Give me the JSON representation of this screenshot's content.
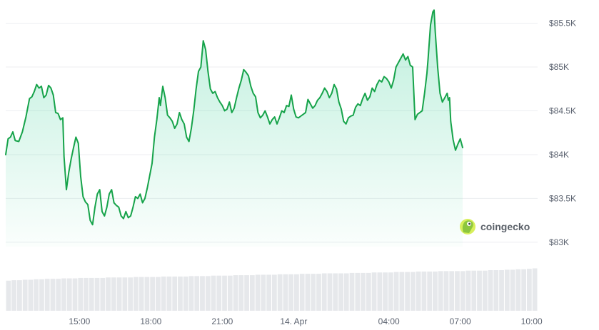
{
  "colors": {
    "line": "#16a34a",
    "area_top": "#16c784",
    "grid": "#eceef1",
    "volume": "#e6e8eb",
    "tick_text": "#5c6370"
  },
  "watermark": {
    "brand": "coingecko",
    "icon": "gecko-logo-icon"
  },
  "chart_data": {
    "type": "area",
    "title": "",
    "xlabel": "",
    "ylabel": "",
    "ylim": [
      82950,
      85700
    ],
    "y_ticks": [
      {
        "value": 83000,
        "label": "$83K"
      },
      {
        "value": 83500,
        "label": "$83.5K"
      },
      {
        "value": 84000,
        "label": "$84K"
      },
      {
        "value": 84500,
        "label": "$84.5K"
      },
      {
        "value": 85000,
        "label": "$85K"
      },
      {
        "value": 85500,
        "label": "$85.5K"
      }
    ],
    "x_range_hours": [
      11.9,
      34.25
    ],
    "x_ticks": [
      {
        "hour": 15,
        "label": "15:00"
      },
      {
        "hour": 18,
        "label": "18:00"
      },
      {
        "hour": 21,
        "label": "21:00"
      },
      {
        "hour": 24,
        "label": "14. Apr"
      },
      {
        "hour": 28,
        "label": "04:00"
      },
      {
        "hour": 31,
        "label": "07:00"
      },
      {
        "hour": 34,
        "label": "10:00"
      }
    ],
    "grid": true,
    "legend": "none",
    "series": [
      {
        "points": [
          [
            11.9,
            84000
          ],
          [
            12.0,
            84180
          ],
          [
            12.1,
            84200
          ],
          [
            12.2,
            84260
          ],
          [
            12.3,
            84160
          ],
          [
            12.45,
            84150
          ],
          [
            12.6,
            84260
          ],
          [
            12.75,
            84430
          ],
          [
            12.9,
            84640
          ],
          [
            13.0,
            84660
          ],
          [
            13.1,
            84720
          ],
          [
            13.2,
            84800
          ],
          [
            13.3,
            84760
          ],
          [
            13.4,
            84780
          ],
          [
            13.5,
            84650
          ],
          [
            13.6,
            84680
          ],
          [
            13.7,
            84790
          ],
          [
            13.8,
            84760
          ],
          [
            13.9,
            84680
          ],
          [
            14.0,
            84480
          ],
          [
            14.1,
            84470
          ],
          [
            14.2,
            84400
          ],
          [
            14.3,
            84420
          ],
          [
            14.35,
            83980
          ],
          [
            14.45,
            83600
          ],
          [
            14.55,
            83800
          ],
          [
            14.65,
            83950
          ],
          [
            14.75,
            84080
          ],
          [
            14.85,
            84200
          ],
          [
            14.95,
            84130
          ],
          [
            15.05,
            83750
          ],
          [
            15.15,
            83520
          ],
          [
            15.25,
            83460
          ],
          [
            15.35,
            83430
          ],
          [
            15.45,
            83250
          ],
          [
            15.55,
            83200
          ],
          [
            15.65,
            83400
          ],
          [
            15.75,
            83550
          ],
          [
            15.85,
            83600
          ],
          [
            15.95,
            83350
          ],
          [
            16.05,
            83300
          ],
          [
            16.15,
            83400
          ],
          [
            16.25,
            83550
          ],
          [
            16.35,
            83600
          ],
          [
            16.45,
            83450
          ],
          [
            16.55,
            83420
          ],
          [
            16.65,
            83400
          ],
          [
            16.75,
            83300
          ],
          [
            16.85,
            83270
          ],
          [
            16.95,
            83350
          ],
          [
            17.05,
            83280
          ],
          [
            17.15,
            83300
          ],
          [
            17.25,
            83400
          ],
          [
            17.35,
            83520
          ],
          [
            17.45,
            83500
          ],
          [
            17.55,
            83550
          ],
          [
            17.65,
            83450
          ],
          [
            17.75,
            83500
          ],
          [
            17.85,
            83620
          ],
          [
            17.95,
            83760
          ],
          [
            18.05,
            83900
          ],
          [
            18.15,
            84200
          ],
          [
            18.25,
            84400
          ],
          [
            18.35,
            84650
          ],
          [
            18.4,
            84560
          ],
          [
            18.5,
            84780
          ],
          [
            18.6,
            84650
          ],
          [
            18.7,
            84450
          ],
          [
            18.8,
            84420
          ],
          [
            18.9,
            84380
          ],
          [
            19.0,
            84300
          ],
          [
            19.1,
            84350
          ],
          [
            19.2,
            84480
          ],
          [
            19.3,
            84400
          ],
          [
            19.4,
            84350
          ],
          [
            19.5,
            84200
          ],
          [
            19.6,
            84150
          ],
          [
            19.7,
            84300
          ],
          [
            19.8,
            84500
          ],
          [
            19.9,
            84750
          ],
          [
            20.0,
            84950
          ],
          [
            20.1,
            85000
          ],
          [
            20.2,
            85300
          ],
          [
            20.3,
            85200
          ],
          [
            20.4,
            84950
          ],
          [
            20.5,
            84750
          ],
          [
            20.6,
            84700
          ],
          [
            20.7,
            84720
          ],
          [
            20.8,
            84650
          ],
          [
            20.9,
            84600
          ],
          [
            21.0,
            84560
          ],
          [
            21.1,
            84500
          ],
          [
            21.2,
            84520
          ],
          [
            21.3,
            84600
          ],
          [
            21.4,
            84480
          ],
          [
            21.5,
            84530
          ],
          [
            21.6,
            84650
          ],
          [
            21.7,
            84760
          ],
          [
            21.8,
            84850
          ],
          [
            21.9,
            84970
          ],
          [
            22.0,
            84940
          ],
          [
            22.1,
            84900
          ],
          [
            22.2,
            84780
          ],
          [
            22.3,
            84700
          ],
          [
            22.4,
            84660
          ],
          [
            22.5,
            84480
          ],
          [
            22.6,
            84420
          ],
          [
            22.7,
            84450
          ],
          [
            22.8,
            84500
          ],
          [
            22.9,
            84430
          ],
          [
            23.0,
            84350
          ],
          [
            23.1,
            84400
          ],
          [
            23.2,
            84430
          ],
          [
            23.3,
            84350
          ],
          [
            23.4,
            84420
          ],
          [
            23.5,
            84500
          ],
          [
            23.6,
            84480
          ],
          [
            23.7,
            84560
          ],
          [
            23.8,
            84550
          ],
          [
            23.9,
            84680
          ],
          [
            24.0,
            84520
          ],
          [
            24.1,
            84430
          ],
          [
            24.2,
            84420
          ],
          [
            24.3,
            84440
          ],
          [
            24.4,
            84460
          ],
          [
            24.5,
            84480
          ],
          [
            24.6,
            84630
          ],
          [
            24.7,
            84580
          ],
          [
            24.8,
            84530
          ],
          [
            24.9,
            84560
          ],
          [
            25.0,
            84620
          ],
          [
            25.1,
            84650
          ],
          [
            25.2,
            84700
          ],
          [
            25.3,
            84760
          ],
          [
            25.4,
            84720
          ],
          [
            25.5,
            84650
          ],
          [
            25.6,
            84700
          ],
          [
            25.7,
            84800
          ],
          [
            25.8,
            84750
          ],
          [
            25.9,
            84600
          ],
          [
            26.0,
            84520
          ],
          [
            26.1,
            84380
          ],
          [
            26.2,
            84350
          ],
          [
            26.3,
            84420
          ],
          [
            26.4,
            84440
          ],
          [
            26.5,
            84450
          ],
          [
            26.6,
            84540
          ],
          [
            26.7,
            84580
          ],
          [
            26.8,
            84560
          ],
          [
            26.9,
            84640
          ],
          [
            27.0,
            84700
          ],
          [
            27.1,
            84620
          ],
          [
            27.2,
            84660
          ],
          [
            27.3,
            84760
          ],
          [
            27.4,
            84720
          ],
          [
            27.5,
            84800
          ],
          [
            27.6,
            84850
          ],
          [
            27.7,
            84830
          ],
          [
            27.8,
            84890
          ],
          [
            27.9,
            84870
          ],
          [
            28.0,
            84830
          ],
          [
            28.1,
            84760
          ],
          [
            28.2,
            84850
          ],
          [
            28.3,
            85000
          ],
          [
            28.4,
            85050
          ],
          [
            28.5,
            85100
          ],
          [
            28.6,
            85150
          ],
          [
            28.7,
            85080
          ],
          [
            28.8,
            85120
          ],
          [
            28.9,
            85020
          ],
          [
            29.0,
            85000
          ],
          [
            29.05,
            84700
          ],
          [
            29.1,
            84400
          ],
          [
            29.2,
            84460
          ],
          [
            29.3,
            84480
          ],
          [
            29.4,
            84500
          ],
          [
            29.5,
            84700
          ],
          [
            29.6,
            84930
          ],
          [
            29.65,
            85100
          ],
          [
            29.75,
            85480
          ],
          [
            29.85,
            85630
          ],
          [
            29.9,
            85650
          ],
          [
            29.95,
            85400
          ],
          [
            30.05,
            85000
          ],
          [
            30.15,
            84700
          ],
          [
            30.25,
            84600
          ],
          [
            30.35,
            84650
          ],
          [
            30.45,
            84700
          ],
          [
            30.5,
            84620
          ],
          [
            30.55,
            84650
          ],
          [
            30.6,
            84380
          ],
          [
            30.7,
            84170
          ],
          [
            30.8,
            84050
          ],
          [
            30.9,
            84120
          ],
          [
            31.0,
            84180
          ],
          [
            31.1,
            84080
          ]
        ]
      }
    ],
    "volume": {
      "values": [
        0.66,
        0.67,
        0.67,
        0.68,
        0.68,
        0.69,
        0.69,
        0.7,
        0.7,
        0.7,
        0.71,
        0.71,
        0.71,
        0.72,
        0.72,
        0.72,
        0.72,
        0.72,
        0.73,
        0.73,
        0.73,
        0.73,
        0.73,
        0.74,
        0.74,
        0.74,
        0.74,
        0.74,
        0.75,
        0.75,
        0.75,
        0.75,
        0.75,
        0.76,
        0.76,
        0.76,
        0.76,
        0.77,
        0.77,
        0.77,
        0.77,
        0.78,
        0.78,
        0.78,
        0.78,
        0.79,
        0.79,
        0.79,
        0.79,
        0.8,
        0.8,
        0.8,
        0.8,
        0.81,
        0.81,
        0.81,
        0.81,
        0.82,
        0.82,
        0.82,
        0.82,
        0.82,
        0.83,
        0.83,
        0.83,
        0.83,
        0.84,
        0.84,
        0.84,
        0.84,
        0.85,
        0.85,
        0.85,
        0.85,
        0.86,
        0.86,
        0.86,
        0.86,
        0.87,
        0.87,
        0.87,
        0.87,
        0.87,
        0.88,
        0.88,
        0.88,
        0.88,
        0.89,
        0.89,
        0.89,
        0.9,
        0.9,
        0.91,
        0.91,
        0.92,
        0.93
      ]
    }
  }
}
